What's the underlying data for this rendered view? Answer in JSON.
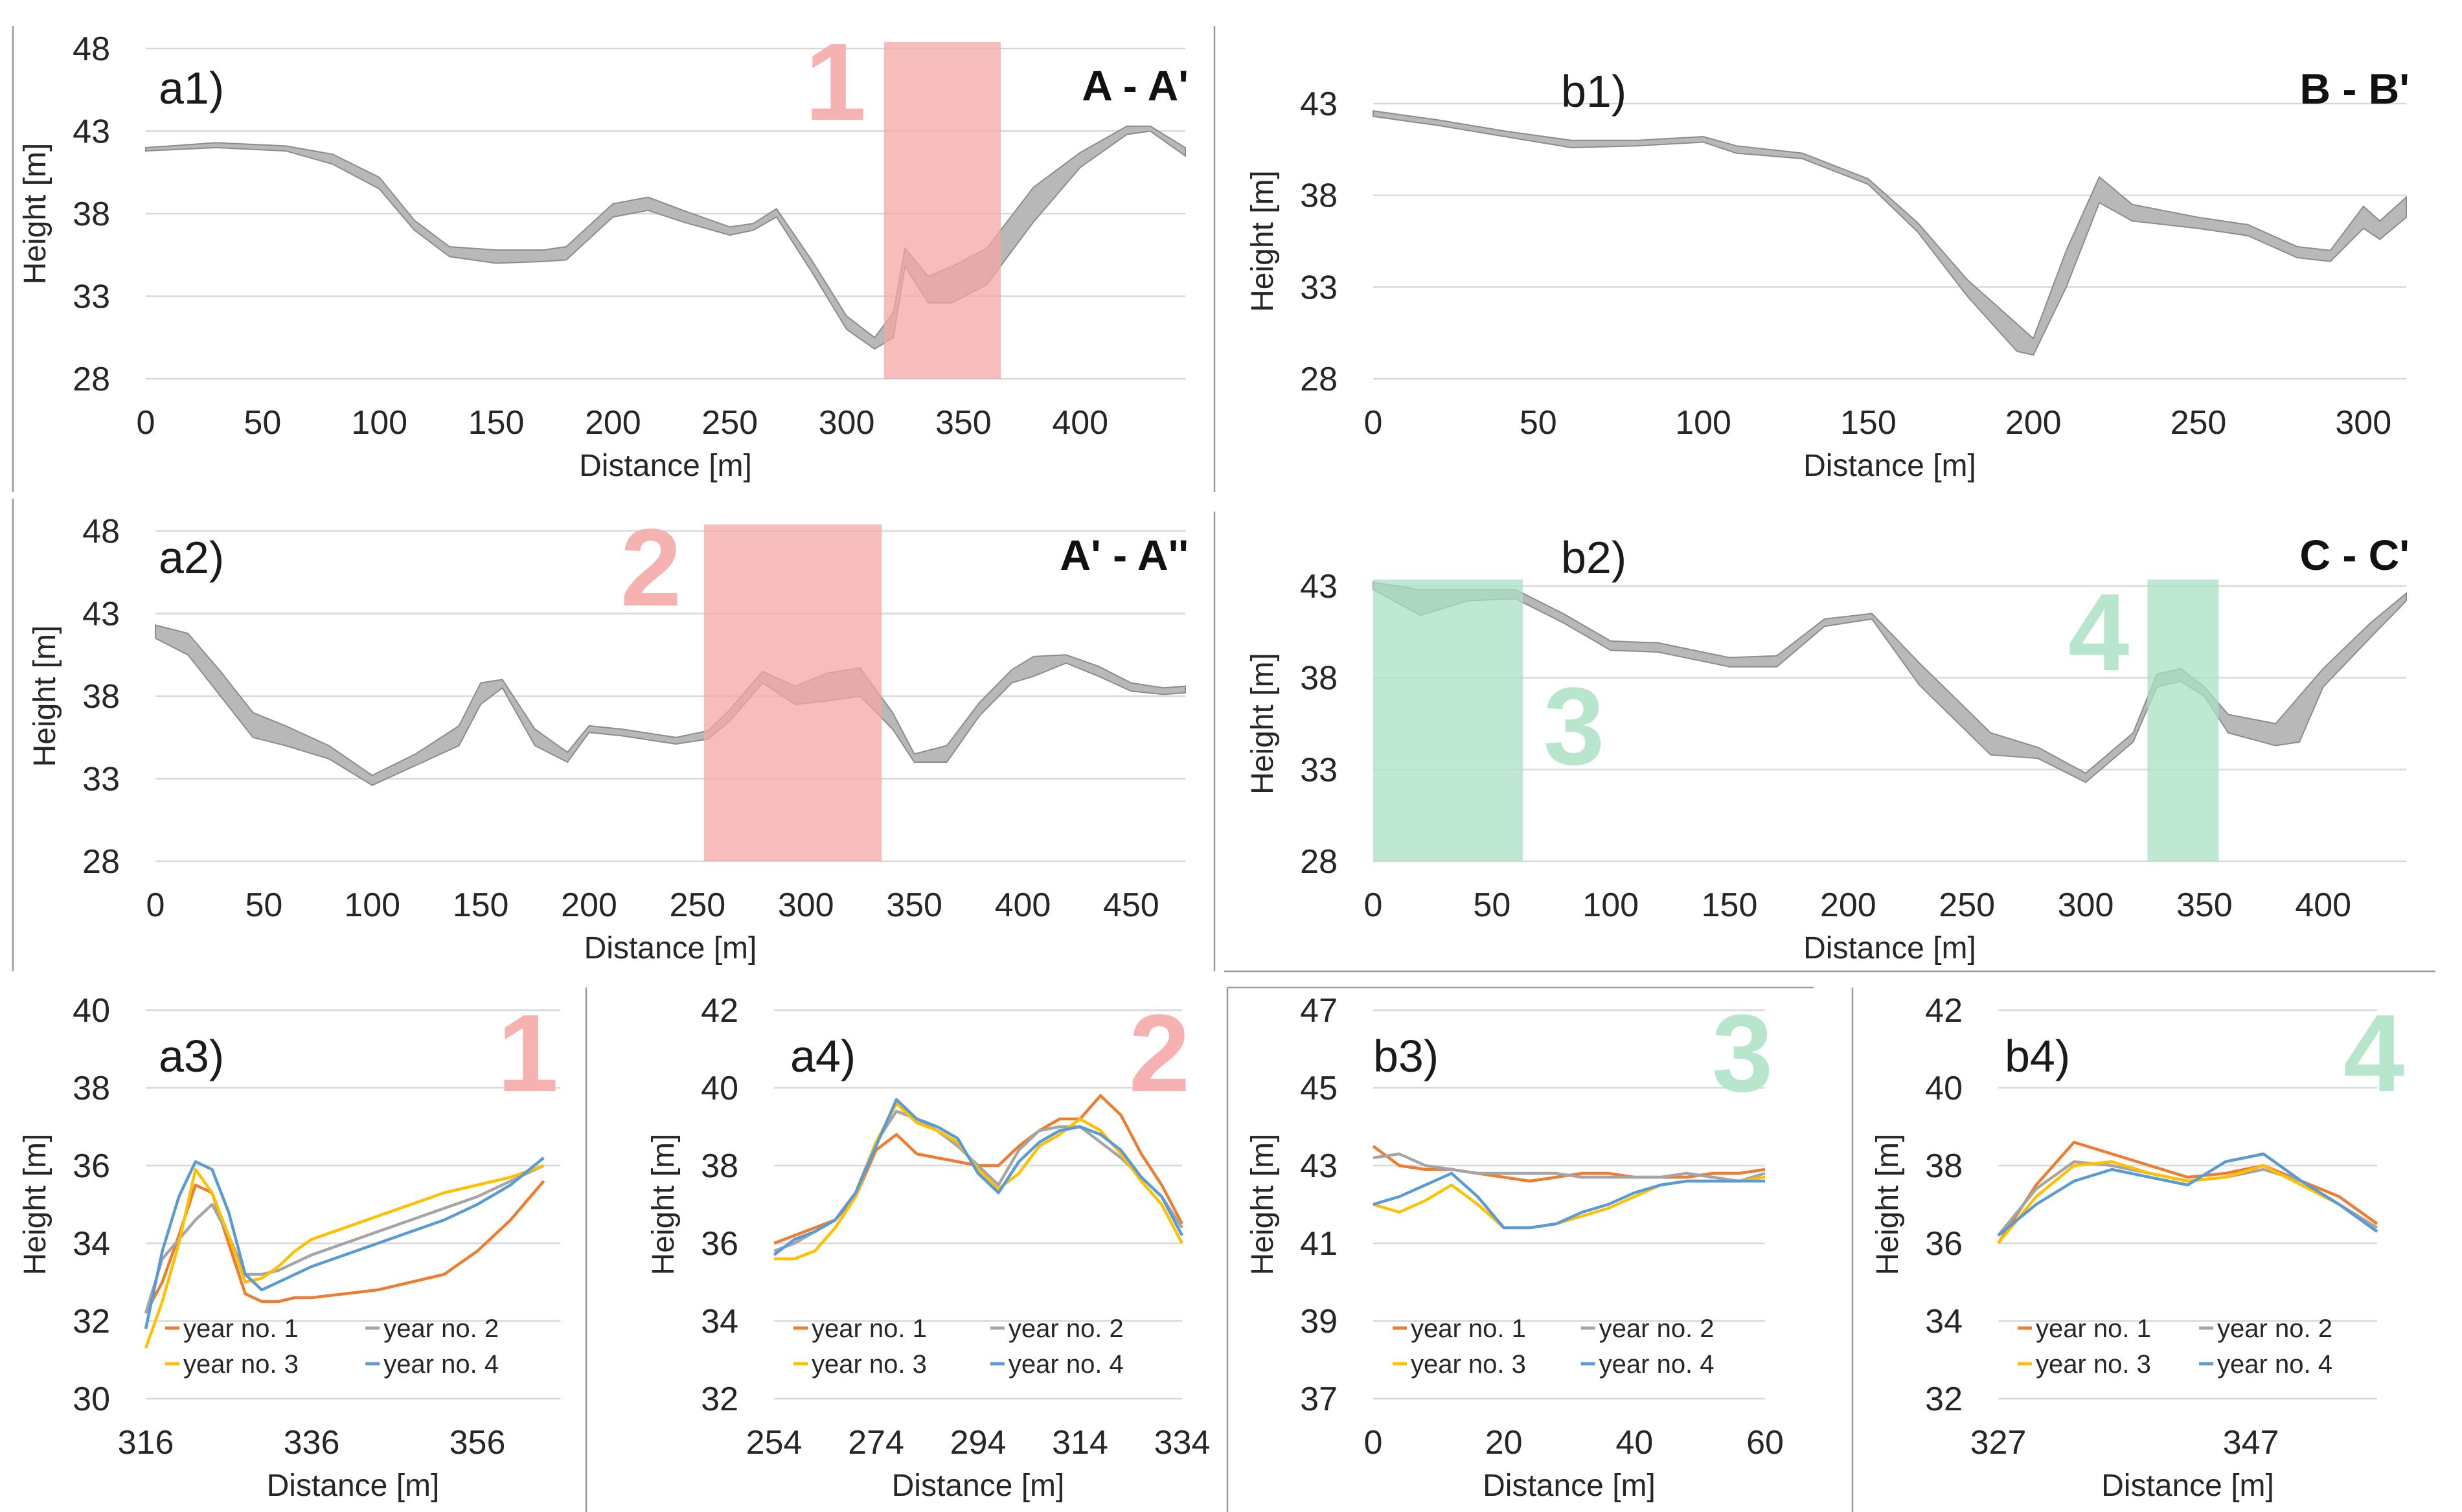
{
  "figure": "Terrain cross-section profiles and multi-year height comparisons",
  "chart_data": [
    {
      "id": "a1",
      "type": "area",
      "title": "a1)",
      "section": "A - A'",
      "xlabel": "Distance [m]",
      "ylabel": "Height [m]",
      "xlim": [
        0,
        445
      ],
      "ylim": [
        28,
        48
      ],
      "xticks": [
        "0",
        "50",
        "100",
        "150",
        "200",
        "250",
        "300",
        "350",
        "400"
      ],
      "yticks": [
        "28",
        "33",
        "38",
        "43",
        "48"
      ],
      "x": [
        0,
        30,
        60,
        80,
        100,
        115,
        130,
        150,
        170,
        180,
        200,
        215,
        230,
        250,
        260,
        270,
        285,
        300,
        312,
        320,
        325,
        335,
        345,
        360,
        380,
        400,
        420,
        430,
        445
      ],
      "lower": [
        41.8,
        42.0,
        41.8,
        41.0,
        39.5,
        37.0,
        35.4,
        35.0,
        35.1,
        35.2,
        37.8,
        38.2,
        37.5,
        36.7,
        37.0,
        37.8,
        34.5,
        31.0,
        29.8,
        30.5,
        34.8,
        32.6,
        32.6,
        33.7,
        37.5,
        40.8,
        42.8,
        43.0,
        41.5
      ],
      "upper": [
        42.0,
        42.3,
        42.1,
        41.6,
        40.2,
        37.6,
        36.0,
        35.8,
        35.8,
        36.0,
        38.6,
        39.0,
        38.2,
        37.2,
        37.4,
        38.3,
        35.2,
        31.8,
        30.5,
        32.0,
        35.9,
        34.2,
        34.8,
        35.9,
        39.6,
        41.7,
        43.3,
        43.3,
        42.0
      ],
      "zones": [
        {
          "label": "1",
          "x0": 316,
          "x1": 366,
          "color": "#f4a7a7"
        }
      ]
    },
    {
      "id": "a2",
      "type": "area",
      "title": "a2)",
      "section": "A' - A''",
      "xlabel": "Distance [m]",
      "ylabel": "Height [m]",
      "xlim": [
        0,
        475
      ],
      "ylim": [
        28,
        48
      ],
      "xticks": [
        "0",
        "50",
        "100",
        "150",
        "200",
        "250",
        "300",
        "350",
        "400",
        "450"
      ],
      "yticks": [
        "28",
        "33",
        "38",
        "43",
        "48"
      ],
      "x": [
        0,
        15,
        30,
        45,
        60,
        80,
        100,
        120,
        140,
        150,
        160,
        175,
        190,
        200,
        215,
        240,
        255,
        265,
        280,
        295,
        310,
        325,
        340,
        350,
        365,
        380,
        395,
        405,
        420,
        435,
        450,
        465,
        475
      ],
      "lower": [
        41.5,
        40.5,
        38.0,
        35.5,
        35.0,
        34.2,
        32.6,
        33.8,
        35.0,
        37.5,
        38.5,
        35.0,
        34.0,
        35.8,
        35.6,
        35.1,
        35.4,
        36.5,
        38.8,
        37.5,
        37.7,
        38.0,
        36.0,
        34.0,
        34.0,
        36.8,
        38.8,
        39.2,
        40.0,
        39.2,
        38.3,
        38.1,
        38.2
      ],
      "upper": [
        42.3,
        41.8,
        39.5,
        37.0,
        36.2,
        35.0,
        33.2,
        34.5,
        36.2,
        38.8,
        39.0,
        36.0,
        34.6,
        36.2,
        36.0,
        35.5,
        35.9,
        37.2,
        39.5,
        38.6,
        39.4,
        39.7,
        37.0,
        34.5,
        35.0,
        37.6,
        39.6,
        40.4,
        40.5,
        39.8,
        38.8,
        38.5,
        38.6
      ],
      "zones": [
        {
          "label": "2",
          "x0": 253,
          "x1": 335,
          "color": "#f4a7a7"
        }
      ]
    },
    {
      "id": "b1",
      "type": "area",
      "title": "b1)",
      "section": "B - B'",
      "xlabel": "Distance [m]",
      "ylabel": "Height [m]",
      "xlim": [
        0,
        313
      ],
      "ylim": [
        28,
        43
      ],
      "xticks": [
        "0",
        "50",
        "100",
        "150",
        "200",
        "250",
        "300"
      ],
      "yticks": [
        "28",
        "33",
        "38",
        "43"
      ],
      "x": [
        0,
        20,
        40,
        60,
        80,
        100,
        110,
        130,
        150,
        165,
        180,
        195,
        200,
        210,
        220,
        230,
        250,
        265,
        280,
        290,
        300,
        305,
        313
      ],
      "lower": [
        42.3,
        41.8,
        41.2,
        40.6,
        40.7,
        40.9,
        40.3,
        40.0,
        38.6,
        36.0,
        32.5,
        29.5,
        29.3,
        33.0,
        37.6,
        36.6,
        36.2,
        35.8,
        34.6,
        34.4,
        36.2,
        35.6,
        36.8
      ],
      "upper": [
        42.6,
        42.1,
        41.5,
        41.0,
        41.0,
        41.2,
        40.7,
        40.3,
        38.9,
        36.5,
        33.4,
        31.0,
        30.2,
        35.0,
        39.0,
        37.5,
        36.8,
        36.4,
        35.2,
        35.0,
        37.4,
        36.6,
        37.9
      ],
      "zones": []
    },
    {
      "id": "b2",
      "type": "area",
      "title": "b2)",
      "section": "C - C'",
      "xlabel": "Distance [m]",
      "ylabel": "Height [m]",
      "xlim": [
        0,
        435
      ],
      "ylim": [
        28,
        43
      ],
      "xticks": [
        "0",
        "50",
        "100",
        "150",
        "200",
        "250",
        "300",
        "350",
        "400"
      ],
      "yticks": [
        "28",
        "33",
        "38",
        "43"
      ],
      "x": [
        0,
        20,
        40,
        60,
        80,
        100,
        120,
        150,
        170,
        190,
        210,
        230,
        260,
        280,
        300,
        320,
        330,
        340,
        350,
        360,
        380,
        390,
        400,
        420,
        435
      ],
      "lower": [
        42.8,
        41.4,
        42.2,
        42.3,
        41.0,
        39.5,
        39.4,
        38.6,
        38.6,
        40.8,
        41.2,
        37.6,
        33.8,
        33.6,
        32.3,
        34.5,
        37.5,
        37.8,
        37.0,
        35.0,
        34.3,
        34.5,
        37.5,
        40.2,
        42.2
      ],
      "upper": [
        43.2,
        42.8,
        42.8,
        42.8,
        41.5,
        40.0,
        39.9,
        39.1,
        39.2,
        41.2,
        41.5,
        38.8,
        35.0,
        34.2,
        32.8,
        35.0,
        38.2,
        38.5,
        37.5,
        36.0,
        35.5,
        37.0,
        38.5,
        41.0,
        42.6
      ],
      "zones": [
        {
          "label": "3",
          "x0": 0,
          "x1": 63,
          "color": "#a9e0c3"
        },
        {
          "label": "4",
          "x0": 326,
          "x1": 356,
          "color": "#a9e0c3"
        }
      ]
    },
    {
      "id": "a3",
      "type": "line",
      "title": "a3)",
      "zone_label": "1",
      "xlabel": "Distance [m]",
      "ylabel": "Height [m]",
      "xlim": [
        316,
        366
      ],
      "ylim": [
        30,
        40
      ],
      "xticks": [
        "316",
        "336",
        "356"
      ],
      "yticks": [
        "30",
        "32",
        "34",
        "36",
        "38",
        "40"
      ],
      "x": [
        316,
        318,
        320,
        322,
        324,
        326,
        328,
        330,
        332,
        334,
        336,
        340,
        344,
        348,
        352,
        356,
        360,
        364
      ],
      "series": [
        {
          "name": "year no. 1",
          "color": "#ed7d31",
          "values": [
            32.2,
            33.0,
            34.2,
            35.5,
            35.3,
            34.0,
            32.7,
            32.5,
            32.5,
            32.6,
            32.6,
            32.7,
            32.8,
            33.0,
            33.2,
            33.8,
            34.6,
            35.6
          ]
        },
        {
          "name": "year no. 2",
          "color": "#a5a5a5",
          "values": [
            32.2,
            33.6,
            34.1,
            34.6,
            35.0,
            34.2,
            33.2,
            33.2,
            33.3,
            33.5,
            33.7,
            34.0,
            34.3,
            34.6,
            34.9,
            35.2,
            35.6,
            36.0
          ]
        },
        {
          "name": "year no. 3",
          "color": "#ffc000",
          "values": [
            31.3,
            32.5,
            34.0,
            35.9,
            35.3,
            34.2,
            33.0,
            33.1,
            33.4,
            33.8,
            34.1,
            34.4,
            34.7,
            35.0,
            35.3,
            35.5,
            35.7,
            36.0
          ]
        },
        {
          "name": "year no. 4",
          "color": "#5b9bd5",
          "values": [
            31.8,
            33.8,
            35.2,
            36.1,
            35.9,
            34.8,
            33.2,
            32.8,
            33.0,
            33.2,
            33.4,
            33.7,
            34.0,
            34.3,
            34.6,
            35.0,
            35.5,
            36.2
          ]
        }
      ]
    },
    {
      "id": "a4",
      "type": "line",
      "title": "a4)",
      "zone_label": "2",
      "xlabel": "Distance [m]",
      "ylabel": "Height [m]",
      "xlim": [
        254,
        334
      ],
      "ylim": [
        32,
        42
      ],
      "xticks": [
        "254",
        "274",
        "294",
        "314",
        "334"
      ],
      "yticks": [
        "32",
        "34",
        "36",
        "38",
        "40",
        "42"
      ],
      "x": [
        254,
        258,
        262,
        266,
        270,
        274,
        278,
        282,
        286,
        290,
        294,
        298,
        302,
        306,
        310,
        314,
        318,
        322,
        326,
        330,
        334
      ],
      "series": [
        {
          "name": "year no. 1",
          "color": "#ed7d31",
          "values": [
            36.0,
            36.2,
            36.4,
            36.6,
            37.2,
            38.4,
            38.8,
            38.3,
            38.2,
            38.1,
            38.0,
            38.0,
            38.5,
            38.9,
            39.2,
            39.2,
            39.8,
            39.3,
            38.3,
            37.5,
            36.5
          ]
        },
        {
          "name": "year no. 2",
          "color": "#a5a5a5",
          "values": [
            35.8,
            36.0,
            36.3,
            36.6,
            37.3,
            38.6,
            39.4,
            39.2,
            38.9,
            38.5,
            38.0,
            37.5,
            38.4,
            38.9,
            39.0,
            39.0,
            38.6,
            38.2,
            37.7,
            37.2,
            36.4
          ]
        },
        {
          "name": "year no. 3",
          "color": "#ffc000",
          "values": [
            35.6,
            35.6,
            35.8,
            36.4,
            37.2,
            38.6,
            39.6,
            39.1,
            38.9,
            38.6,
            37.9,
            37.4,
            37.8,
            38.5,
            38.8,
            39.2,
            38.9,
            38.3,
            37.6,
            37.0,
            36.0
          ]
        },
        {
          "name": "year no. 4",
          "color": "#5b9bd5",
          "values": [
            35.7,
            36.1,
            36.3,
            36.6,
            37.3,
            38.5,
            39.7,
            39.2,
            39.0,
            38.7,
            37.8,
            37.3,
            38.1,
            38.6,
            38.9,
            39.0,
            38.8,
            38.4,
            37.7,
            37.2,
            36.2
          ]
        }
      ]
    },
    {
      "id": "b3",
      "type": "line",
      "title": "b3)",
      "zone_label": "3",
      "xlabel": "Distance [m]",
      "ylabel": "Height [m]",
      "xlim": [
        0,
        60
      ],
      "ylim": [
        37,
        47
      ],
      "xticks": [
        "0",
        "20",
        "40",
        "60"
      ],
      "yticks": [
        "37",
        "39",
        "41",
        "43",
        "45",
        "47"
      ],
      "x": [
        0,
        4,
        8,
        12,
        16,
        20,
        24,
        28,
        32,
        36,
        40,
        44,
        48,
        52,
        56,
        60
      ],
      "series": [
        {
          "name": "year no. 1",
          "color": "#ed7d31",
          "values": [
            43.5,
            43.0,
            42.9,
            42.9,
            42.8,
            42.7,
            42.6,
            42.7,
            42.8,
            42.8,
            42.7,
            42.7,
            42.7,
            42.8,
            42.8,
            42.9
          ]
        },
        {
          "name": "year no. 2",
          "color": "#a5a5a5",
          "values": [
            43.2,
            43.3,
            43.0,
            42.9,
            42.8,
            42.8,
            42.8,
            42.8,
            42.7,
            42.7,
            42.7,
            42.7,
            42.8,
            42.7,
            42.6,
            42.8
          ]
        },
        {
          "name": "year no. 3",
          "color": "#ffc000",
          "values": [
            42.0,
            41.8,
            42.1,
            42.5,
            42.0,
            41.4,
            41.4,
            41.5,
            41.7,
            41.9,
            42.2,
            42.5,
            42.6,
            42.6,
            42.6,
            42.7
          ]
        },
        {
          "name": "year no. 4",
          "color": "#5b9bd5",
          "values": [
            42.0,
            42.2,
            42.5,
            42.8,
            42.2,
            41.4,
            41.4,
            41.5,
            41.8,
            42.0,
            42.3,
            42.5,
            42.6,
            42.6,
            42.6,
            42.6
          ]
        }
      ]
    },
    {
      "id": "b4",
      "type": "line",
      "title": "b4)",
      "zone_label": "4",
      "xlabel": "Distance [m]",
      "ylabel": "Height [m]",
      "xlim": [
        327,
        357
      ],
      "ylim": [
        32,
        42
      ],
      "xticks": [
        "327",
        "347"
      ],
      "yticks": [
        "32",
        "34",
        "36",
        "38",
        "40",
        "42"
      ],
      "x": [
        327,
        330,
        333,
        336,
        339,
        342,
        345,
        348,
        351,
        354,
        357
      ],
      "series": [
        {
          "name": "year no. 1",
          "color": "#ed7d31",
          "values": [
            36.0,
            37.5,
            38.6,
            38.3,
            38.0,
            37.7,
            37.8,
            38.0,
            37.6,
            37.2,
            36.5
          ]
        },
        {
          "name": "year no. 2",
          "color": "#a5a5a5",
          "values": [
            36.2,
            37.4,
            38.1,
            38.0,
            37.8,
            37.6,
            37.7,
            37.9,
            37.6,
            37.0,
            36.4
          ]
        },
        {
          "name": "year no. 3",
          "color": "#ffc000",
          "values": [
            36.0,
            37.2,
            38.0,
            38.1,
            37.8,
            37.6,
            37.7,
            38.0,
            37.5,
            37.0,
            36.3
          ]
        },
        {
          "name": "year no. 4",
          "color": "#5b9bd5",
          "values": [
            36.2,
            37.0,
            37.6,
            37.9,
            37.7,
            37.5,
            38.1,
            38.3,
            37.6,
            37.0,
            36.3
          ]
        }
      ]
    }
  ]
}
